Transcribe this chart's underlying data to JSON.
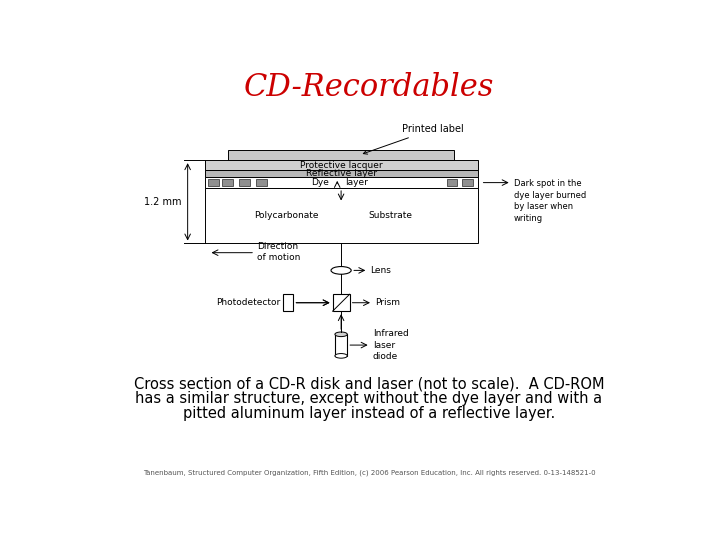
{
  "title": "CD-Recordables",
  "title_color": "#CC0000",
  "title_fontsize": 22,
  "caption_line1": "Cross section of a CD-R disk and laser (not to scale).  A CD-ROM",
  "caption_line2": "has a similar structure, except without the dye layer and with a",
  "caption_line3": "pitted aluminum layer instead of a reflective layer.",
  "footnote": "Tanenbaum, Structured Computer Organization, Fifth Edition, (c) 2006 Pearson Education, Inc. All rights reserved. 0-13-148521-0",
  "bg_color": "#ffffff",
  "layer_light_gray": "#d0d0d0",
  "layer_medium_gray": "#b8b8b8",
  "layer_dark_gray": "#909090",
  "label_gray": "#c8c8c8"
}
